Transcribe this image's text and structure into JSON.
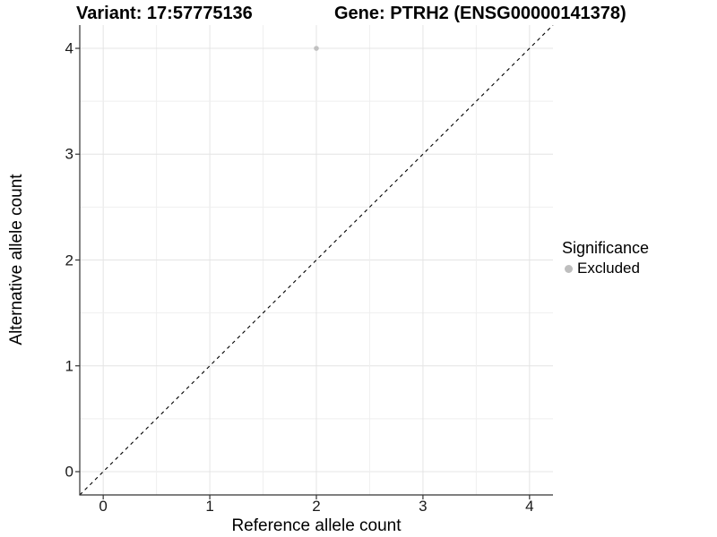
{
  "chart_data": {
    "type": "scatter",
    "titles": {
      "variant": "Variant: 17:57775136",
      "gene": "Gene: PTRH2 (ENSG00000141378)"
    },
    "xlabel": "Reference allele count",
    "ylabel": "Alternative allele count",
    "xticks": [
      "0",
      "1",
      "2",
      "3",
      "4"
    ],
    "yticks": [
      "0",
      "1",
      "2",
      "3",
      "4"
    ],
    "xlim": [
      -0.22,
      4.22
    ],
    "ylim": [
      -0.22,
      4.22
    ],
    "grid": "major and minor, every 0.5",
    "grid_step": 0.5,
    "points": [
      {
        "x": 2,
        "y": 4,
        "series": "Excluded"
      }
    ],
    "identity_line": {
      "slope": 1,
      "intercept": 0,
      "linetype": "dashed",
      "color": "#000000"
    },
    "legend": {
      "position": "right",
      "title": "Significance",
      "entries": [
        {
          "label": "Excluded",
          "color": "#bebebe",
          "marker": "circle"
        }
      ]
    },
    "colors": {
      "background": "#ffffff",
      "grid_major": "#e4e4e4",
      "grid_minor": "#efefef",
      "axis_line": "#333333",
      "tick_label": "#1a1a1a",
      "point": "#c1c1c1"
    }
  }
}
